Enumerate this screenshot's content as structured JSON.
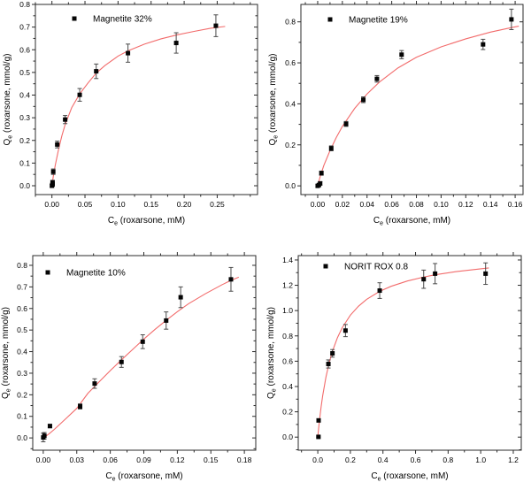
{
  "figure": {
    "description": "Four adsorption isotherm plots of roxarsone uptake (Qe vs Ce) with experimental points, error bars and red model fit curves",
    "colors": {
      "background": "#ffffff",
      "frame": "#2b2b2b",
      "marker": "#050505",
      "error_bar": "#4a4a4a",
      "fit_line": "#f26b6b",
      "text": "#000000"
    }
  },
  "chart_data": [
    {
      "id": "magnetite-32",
      "type": "scatter",
      "legend": "Magnetite 32%",
      "xlabel_base": "C",
      "xlabel_sub": "e",
      "xlabel_rest": " (roxarsone, mM)",
      "ylabel_base": "Q",
      "ylabel_sub": "e",
      "ylabel_rest": " (roxarsone, mmol/g)",
      "xlim": [
        -0.025,
        0.311
      ],
      "ylim": [
        -0.039,
        0.8
      ],
      "xtick_vals": [
        0.0,
        0.05,
        0.1,
        0.15,
        0.2,
        0.25
      ],
      "xticks": [
        "0.00",
        "0.05",
        "0.10",
        "0.15",
        "0.20",
        "0.25"
      ],
      "ytick_vals": [
        0.0,
        0.1,
        0.2,
        0.3,
        0.4,
        0.5,
        0.6,
        0.7,
        0.8
      ],
      "yticks": [
        "0.0",
        "0.1",
        "0.2",
        "0.3",
        "0.4",
        "0.5",
        "0.6",
        "0.7",
        "0.8"
      ],
      "x_minor_step": 0.025,
      "y_minor_step": 0.05,
      "points": [
        [
          0.0,
          0.0,
          0.008
        ],
        [
          0.001,
          0.006,
          0.008
        ],
        [
          0.001,
          0.014,
          0.01
        ],
        [
          0.002,
          0.062,
          0.012
        ],
        [
          0.008,
          0.182,
          0.015
        ],
        [
          0.02,
          0.292,
          0.018
        ],
        [
          0.042,
          0.401,
          0.028
        ],
        [
          0.067,
          0.505,
          0.032
        ],
        [
          0.115,
          0.585,
          0.04
        ],
        [
          0.188,
          0.63,
          0.045
        ],
        [
          0.248,
          0.706,
          0.048
        ]
      ],
      "fit_curve": [
        [
          0.0,
          0.0
        ],
        [
          0.002,
          0.04
        ],
        [
          0.005,
          0.09
        ],
        [
          0.01,
          0.16
        ],
        [
          0.015,
          0.22
        ],
        [
          0.02,
          0.27
        ],
        [
          0.03,
          0.345
        ],
        [
          0.042,
          0.405
        ],
        [
          0.055,
          0.455
        ],
        [
          0.067,
          0.497
        ],
        [
          0.08,
          0.53
        ],
        [
          0.1,
          0.572
        ],
        [
          0.115,
          0.595
        ],
        [
          0.14,
          0.625
        ],
        [
          0.165,
          0.648
        ],
        [
          0.19,
          0.666
        ],
        [
          0.215,
          0.681
        ],
        [
          0.24,
          0.695
        ],
        [
          0.262,
          0.703
        ]
      ]
    },
    {
      "id": "magnetite-19",
      "type": "scatter",
      "legend": "Magnetite 19%",
      "xlabel_base": "C",
      "xlabel_sub": "e",
      "xlabel_rest": " (roxarsone, mM)",
      "ylabel_base": "Q",
      "ylabel_sub": "e",
      "ylabel_rest": " (roxarsone, mmol/g)",
      "xlim": [
        -0.0136,
        0.1664
      ],
      "ylim": [
        -0.0426,
        0.885
      ],
      "xtick_vals": [
        0.0,
        0.02,
        0.04,
        0.06,
        0.08,
        0.1,
        0.12,
        0.14,
        0.16
      ],
      "xticks": [
        "0.00",
        "0.02",
        "0.04",
        "0.06",
        "0.08",
        "0.10",
        "0.12",
        "0.14",
        "0.16"
      ],
      "ytick_vals": [
        0.0,
        0.2,
        0.4,
        0.6,
        0.8
      ],
      "yticks": [
        "0.0",
        "0.2",
        "0.4",
        "0.6",
        "0.8"
      ],
      "x_minor_step": 0.01,
      "y_minor_step": 0.1,
      "points": [
        [
          0.0,
          0.0,
          0.006
        ],
        [
          0.001,
          0.004,
          0.006
        ],
        [
          0.002,
          0.012,
          0.008
        ],
        [
          0.003,
          0.062,
          0.01
        ],
        [
          0.011,
          0.183,
          0.012
        ],
        [
          0.023,
          0.302,
          0.012
        ],
        [
          0.037,
          0.42,
          0.014
        ],
        [
          0.048,
          0.522,
          0.016
        ],
        [
          0.068,
          0.64,
          0.02
        ],
        [
          0.134,
          0.69,
          0.025
        ],
        [
          0.157,
          0.812,
          0.05
        ]
      ],
      "fit_curve": [
        [
          0.0,
          0.0
        ],
        [
          0.002,
          0.045
        ],
        [
          0.005,
          0.1
        ],
        [
          0.01,
          0.172
        ],
        [
          0.015,
          0.235
        ],
        [
          0.02,
          0.29
        ],
        [
          0.03,
          0.378
        ],
        [
          0.04,
          0.448
        ],
        [
          0.05,
          0.506
        ],
        [
          0.065,
          0.575
        ],
        [
          0.08,
          0.627
        ],
        [
          0.1,
          0.678
        ],
        [
          0.12,
          0.717
        ],
        [
          0.14,
          0.75
        ],
        [
          0.157,
          0.772
        ],
        [
          0.163,
          0.779
        ]
      ]
    },
    {
      "id": "magnetite-10",
      "type": "scatter",
      "legend": "Magnetite 10%",
      "xlabel_base": "C",
      "xlabel_sub": "e",
      "xlabel_rest": " (roxarsone, mM)",
      "ylabel_base": "Q",
      "ylabel_sub": "e",
      "ylabel_rest": " (roxarsone, mmol/g)",
      "xlim": [
        -0.0094,
        0.1902
      ],
      "ylim": [
        -0.0569,
        0.845
      ],
      "xtick_vals": [
        0.0,
        0.03,
        0.06,
        0.09,
        0.12,
        0.15,
        0.18
      ],
      "xticks": [
        "0.00",
        "0.03",
        "0.06",
        "0.09",
        "0.12",
        "0.15",
        "0.18"
      ],
      "ytick_vals": [
        0.0,
        0.1,
        0.2,
        0.3,
        0.4,
        0.5,
        0.6,
        0.7,
        0.8
      ],
      "yticks": [
        "0.0",
        "0.1",
        "0.2",
        "0.3",
        "0.4",
        "0.5",
        "0.6",
        "0.7",
        "0.8"
      ],
      "x_minor_step": 0.015,
      "y_minor_step": 0.05,
      "points": [
        [
          0.0,
          0.002,
          0.02
        ],
        [
          0.001,
          0.01,
          0.015
        ],
        [
          0.006,
          0.055,
          0.008
        ],
        [
          0.033,
          0.146,
          0.012
        ],
        [
          0.046,
          0.252,
          0.022
        ],
        [
          0.07,
          0.352,
          0.025
        ],
        [
          0.089,
          0.446,
          0.032
        ],
        [
          0.11,
          0.544,
          0.04
        ],
        [
          0.123,
          0.652,
          0.048
        ],
        [
          0.168,
          0.735,
          0.055
        ]
      ],
      "fit_curve": [
        [
          0.0,
          0.0
        ],
        [
          0.005,
          0.018
        ],
        [
          0.01,
          0.04
        ],
        [
          0.02,
          0.088
        ],
        [
          0.03,
          0.137
        ],
        [
          0.04,
          0.207
        ],
        [
          0.05,
          0.26
        ],
        [
          0.06,
          0.312
        ],
        [
          0.07,
          0.362
        ],
        [
          0.08,
          0.41
        ],
        [
          0.09,
          0.458
        ],
        [
          0.1,
          0.503
        ],
        [
          0.11,
          0.545
        ],
        [
          0.12,
          0.585
        ],
        [
          0.13,
          0.622
        ],
        [
          0.145,
          0.668
        ],
        [
          0.16,
          0.71
        ],
        [
          0.168,
          0.73
        ],
        [
          0.175,
          0.745
        ]
      ]
    },
    {
      "id": "norit-rox-08",
      "type": "scatter",
      "legend": "NORIT ROX 0.8",
      "xlabel_base": "C",
      "xlabel_sub": "e",
      "xlabel_rest": " (roxarsone, mM)",
      "ylabel_base": "Q",
      "ylabel_sub": "e",
      "ylabel_rest": " (roxarsone, mmol/g)",
      "xlim": [
        -0.12,
        1.249
      ],
      "ylim": [
        -0.1034,
        1.4345
      ],
      "xtick_vals": [
        0.0,
        0.2,
        0.4,
        0.6,
        0.8,
        1.0,
        1.2
      ],
      "xticks": [
        "0.0",
        "0.2",
        "0.4",
        "0.6",
        "0.8",
        "1.0",
        "1.2"
      ],
      "ytick_vals": [
        0.0,
        0.2,
        0.4,
        0.6,
        0.8,
        1.0,
        1.2,
        1.4
      ],
      "yticks": [
        "0.0",
        "0.2",
        "0.4",
        "0.6",
        "0.8",
        "1.0",
        "1.2",
        "1.4"
      ],
      "x_minor_step": 0.1,
      "y_minor_step": 0.1,
      "points": [
        [
          0.004,
          0.002,
          0.006
        ],
        [
          0.005,
          0.132,
          0.012
        ],
        [
          0.065,
          0.578,
          0.032
        ],
        [
          0.09,
          0.662,
          0.03
        ],
        [
          0.17,
          0.842,
          0.048
        ],
        [
          0.38,
          1.158,
          0.062
        ],
        [
          0.65,
          1.248,
          0.072
        ],
        [
          0.72,
          1.292,
          0.08
        ],
        [
          1.03,
          1.292,
          0.085
        ]
      ],
      "fit_curve": [
        [
          0.0,
          0.0
        ],
        [
          0.005,
          0.067
        ],
        [
          0.01,
          0.128
        ],
        [
          0.02,
          0.235
        ],
        [
          0.03,
          0.327
        ],
        [
          0.05,
          0.474
        ],
        [
          0.07,
          0.588
        ],
        [
          0.09,
          0.679
        ],
        [
          0.12,
          0.784
        ],
        [
          0.15,
          0.865
        ],
        [
          0.2,
          0.964
        ],
        [
          0.25,
          1.035
        ],
        [
          0.3,
          1.089
        ],
        [
          0.38,
          1.152
        ],
        [
          0.45,
          1.192
        ],
        [
          0.55,
          1.234
        ],
        [
          0.65,
          1.265
        ],
        [
          0.72,
          1.283
        ],
        [
          0.85,
          1.308
        ],
        [
          1.0,
          1.33
        ],
        [
          1.05,
          1.337
        ]
      ]
    }
  ]
}
